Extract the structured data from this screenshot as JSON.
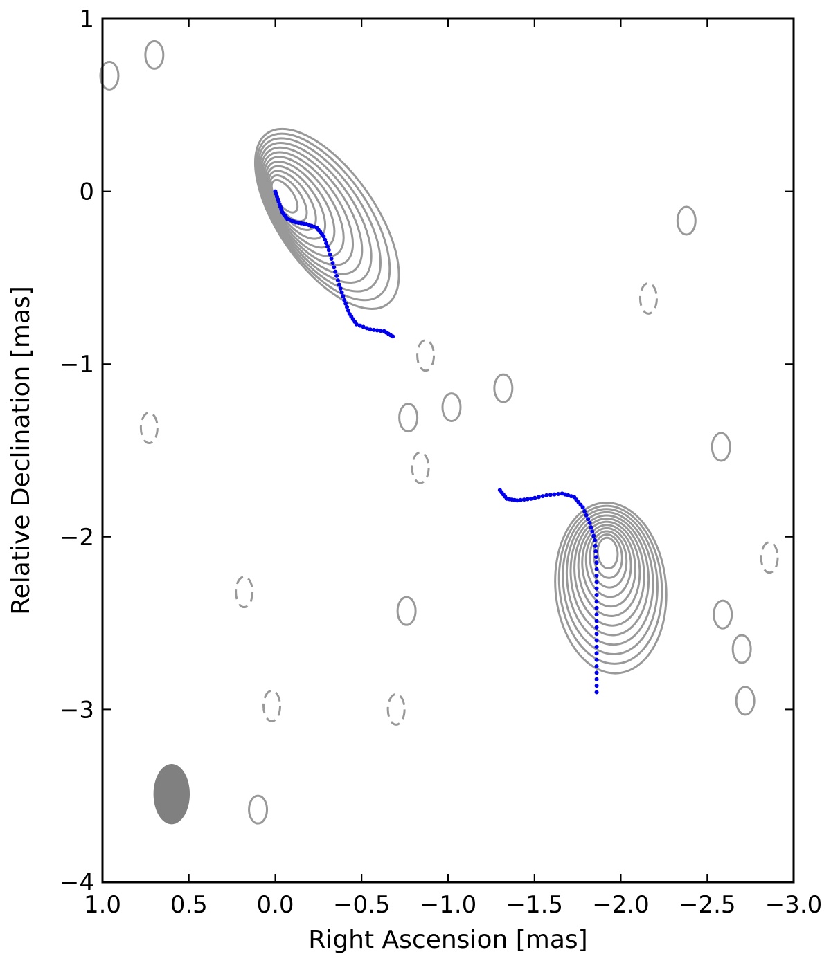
{
  "chart_data": {
    "type": "scatter",
    "title": "",
    "xlabel": "Right Ascension [mas]",
    "ylabel": "Relative Declination [mas]",
    "xlim": [
      1.0,
      -3.0
    ],
    "ylim": [
      -4,
      1
    ],
    "x_ticks": [
      1.0,
      0.5,
      0.0,
      -0.5,
      -1.0,
      -1.5,
      -2.0,
      -2.5,
      -3.0
    ],
    "x_tick_labels": [
      "1.0",
      "0.5",
      "0.0",
      "−0.5",
      "−1.0",
      "−1.5",
      "−2.0",
      "−2.5",
      "−3.0"
    ],
    "y_ticks": [
      1,
      0,
      -1,
      -2,
      -3,
      -4
    ],
    "y_tick_labels": [
      "1",
      "0",
      "−1",
      "−2",
      "−3",
      "−4"
    ],
    "grid": false,
    "ridge_color": "#0000ee",
    "contour_color": "#999999",
    "series": [
      {
        "values": [
          [
            0.0,
            0.0
          ],
          [
            -0.02,
            -0.06
          ],
          [
            -0.04,
            -0.12
          ],
          [
            -0.07,
            -0.16
          ],
          [
            -0.12,
            -0.18
          ],
          [
            -0.18,
            -0.19
          ],
          [
            -0.24,
            -0.21
          ],
          [
            -0.28,
            -0.26
          ],
          [
            -0.31,
            -0.34
          ],
          [
            -0.34,
            -0.44
          ],
          [
            -0.37,
            -0.54
          ],
          [
            -0.4,
            -0.63
          ],
          [
            -0.43,
            -0.71
          ],
          [
            -0.47,
            -0.77
          ],
          [
            -0.55,
            -0.8
          ],
          [
            -0.63,
            -0.81
          ],
          [
            -0.68,
            -0.84
          ]
        ]
      },
      {
        "values": [
          [
            -1.3,
            -1.73
          ],
          [
            -1.34,
            -1.78
          ],
          [
            -1.4,
            -1.79
          ],
          [
            -1.48,
            -1.78
          ],
          [
            -1.57,
            -1.76
          ],
          [
            -1.66,
            -1.75
          ],
          [
            -1.73,
            -1.77
          ],
          [
            -1.78,
            -1.83
          ],
          [
            -1.82,
            -1.92
          ],
          [
            -1.85,
            -2.02
          ],
          [
            -1.86,
            -2.15
          ],
          [
            -1.86,
            -2.3
          ],
          [
            -1.86,
            -2.45
          ],
          [
            -1.86,
            -2.6
          ],
          [
            -1.86,
            -2.75
          ],
          [
            -1.86,
            -2.9
          ]
        ]
      }
    ],
    "components": [
      {
        "x": 0.0,
        "y": 0.0,
        "rx": 0.28,
        "ry": 0.55,
        "angle": -35
      },
      {
        "x": -1.92,
        "y": -2.05,
        "rx": 0.32,
        "ry": 0.45,
        "angle": -5
      }
    ],
    "negative_contours": [
      [
        -0.87,
        -0.95
      ],
      [
        0.73,
        -1.37
      ],
      [
        0.18,
        -2.32
      ],
      [
        -0.84,
        -1.6
      ],
      [
        -2.16,
        -0.62
      ],
      [
        -2.86,
        -2.12
      ],
      [
        0.02,
        -2.98
      ],
      [
        -0.7,
        -3.0
      ]
    ],
    "noise_contours": [
      [
        0.7,
        0.79
      ],
      [
        0.96,
        0.67
      ],
      [
        -0.77,
        -1.31
      ],
      [
        -1.02,
        -1.25
      ],
      [
        -1.32,
        -1.14
      ],
      [
        -2.38,
        -0.17
      ],
      [
        -2.58,
        -1.48
      ],
      [
        -2.59,
        -2.45
      ],
      [
        -2.7,
        -2.65
      ],
      [
        -2.72,
        -2.95
      ],
      [
        0.1,
        -3.58
      ],
      [
        -0.76,
        -2.43
      ]
    ],
    "beam": {
      "x": 0.6,
      "y": -3.49,
      "major": 0.35,
      "minor": 0.21,
      "angle": 0
    }
  }
}
